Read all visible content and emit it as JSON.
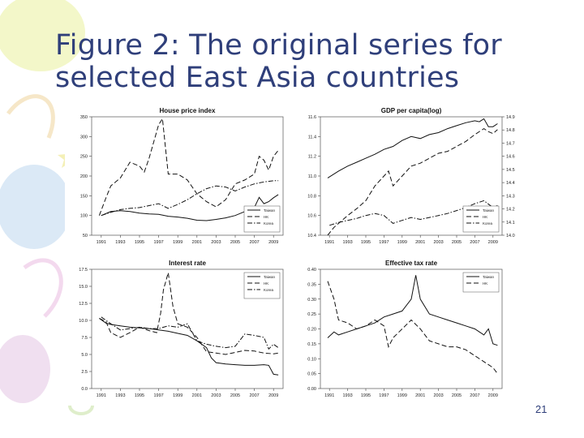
{
  "slide": {
    "title_line1": "Figure 2: The original series for",
    "title_line2": "selected East Asia countries",
    "page_number": "21"
  },
  "chart_data": [
    {
      "type": "line",
      "title": "House price index",
      "x_ticks": [
        "1991",
        "1993",
        "1995",
        "1997",
        "1999",
        "2001",
        "2003",
        "2005",
        "2007",
        "2009"
      ],
      "xlim": [
        1990,
        2010
      ],
      "ylim": [
        50,
        350
      ],
      "y_ticks": [
        "50",
        "100",
        "150",
        "200",
        "250",
        "300",
        "350"
      ],
      "legend": [
        "Taiwan",
        "HK",
        "Korea"
      ],
      "legend_position": "bottom-right",
      "series": [
        {
          "name": "Taiwan",
          "dash": "solid",
          "x": [
            1991,
            1992,
            1993,
            1994,
            1995,
            1996,
            1997,
            1998,
            1999,
            2000,
            2001,
            2002,
            2003,
            2004,
            2005,
            2006,
            2007,
            2007.5,
            2008,
            2008.5,
            2009,
            2009.5
          ],
          "y": [
            100,
            110,
            112,
            110,
            106,
            104,
            103,
            98,
            96,
            93,
            88,
            87,
            90,
            94,
            100,
            110,
            120,
            146,
            130,
            135,
            145,
            153
          ]
        },
        {
          "name": "HK",
          "dash": "dash",
          "x": [
            1990.8,
            1991.5,
            1992,
            1993,
            1994,
            1995,
            1995.5,
            1996,
            1997,
            1997.4,
            1998,
            1999,
            2000,
            2001,
            2002,
            2003,
            2004,
            2005,
            2006,
            2007,
            2007.5,
            2008,
            2008.5,
            2009,
            2009.5
          ],
          "y": [
            100,
            145,
            175,
            195,
            235,
            225,
            210,
            245,
            330,
            345,
            205,
            205,
            190,
            155,
            135,
            122,
            140,
            180,
            190,
            205,
            250,
            240,
            215,
            250,
            265
          ]
        },
        {
          "name": "Korea",
          "dash": "dashdot",
          "x": [
            1991,
            1992,
            1993,
            1994,
            1995,
            1996,
            1997,
            1998,
            1999,
            2000,
            2001,
            2002,
            2003,
            2004,
            2005,
            2006,
            2007,
            2008,
            2009,
            2009.5
          ],
          "y": [
            100,
            108,
            115,
            118,
            120,
            125,
            130,
            118,
            128,
            140,
            155,
            168,
            175,
            172,
            162,
            172,
            180,
            185,
            188,
            188
          ]
        }
      ]
    },
    {
      "type": "line",
      "title": "GDP per capita(log)",
      "x_ticks": [
        "1991",
        "1993",
        "1995",
        "1997",
        "1999",
        "2001",
        "2003",
        "2005",
        "2007",
        "2009"
      ],
      "xlim": [
        1990,
        2010
      ],
      "ylim": [
        10.4,
        11.6
      ],
      "y_ticks": [
        "10.4",
        "10.6",
        "10.8",
        "11.0",
        "11.2",
        "11.4",
        "11.6"
      ],
      "y2lim": [
        14.0,
        14.9
      ],
      "y2_ticks": [
        "14.0",
        "14.1",
        "14.2",
        "14.3",
        "14.4",
        "14.5",
        "14.6",
        "14.7",
        "14.8",
        "14.9"
      ],
      "legend": [
        "Taiwan",
        "HK",
        "Korea"
      ],
      "legend_position": "bottom-right",
      "series": [
        {
          "name": "Taiwan",
          "dash": "solid",
          "x": [
            1990.8,
            1992,
            1993,
            1994,
            1995,
            1996,
            1997,
            1998,
            1999,
            2000,
            2001,
            2002,
            2003,
            2004,
            2005,
            2006,
            2007,
            2007.5,
            2008,
            2008.5,
            2009,
            2009.5
          ],
          "y": [
            10.98,
            11.05,
            11.1,
            11.14,
            11.18,
            11.22,
            11.27,
            11.3,
            11.36,
            11.4,
            11.38,
            11.42,
            11.44,
            11.48,
            11.51,
            11.54,
            11.56,
            11.55,
            11.58,
            11.5,
            11.5,
            11.53
          ]
        },
        {
          "name": "HK",
          "dash": "dash",
          "x": [
            1990.8,
            1991.5,
            1992,
            1993,
            1994,
            1995,
            1996,
            1997,
            1997.5,
            1998,
            1999,
            2000,
            2001,
            2002,
            2003,
            2004,
            2005,
            2006,
            2007,
            2008,
            2008.5,
            2009,
            2009.5
          ],
          "y": [
            10.4,
            10.48,
            10.52,
            10.6,
            10.67,
            10.75,
            10.9,
            11.0,
            11.05,
            10.9,
            11.0,
            11.1,
            11.13,
            11.18,
            11.23,
            11.25,
            11.3,
            11.35,
            11.42,
            11.48,
            11.45,
            11.43,
            11.47
          ]
        },
        {
          "name": "Korea",
          "dash": "dashdot",
          "x": [
            1991,
            1992,
            1993,
            1994,
            1995,
            1996,
            1997,
            1998,
            1999,
            2000,
            2001,
            2002,
            2003,
            2004,
            2005,
            2006,
            2007,
            2008,
            2009,
            2009.5
          ],
          "y": [
            10.5,
            10.53,
            10.55,
            10.57,
            10.6,
            10.62,
            10.6,
            10.52,
            10.55,
            10.58,
            10.56,
            10.58,
            10.6,
            10.62,
            10.65,
            10.68,
            10.72,
            10.75,
            10.68,
            10.7
          ]
        }
      ]
    },
    {
      "type": "line",
      "title": "Interest rate",
      "x_ticks": [
        "1991",
        "1993",
        "1995",
        "1997",
        "1999",
        "2001",
        "2003",
        "2005",
        "2007",
        "2009"
      ],
      "xlim": [
        1990,
        2010
      ],
      "ylim": [
        0,
        17.5
      ],
      "y_ticks": [
        "0.0",
        "2.5",
        "5.0",
        "7.5",
        "10.0",
        "12.5",
        "15.0",
        "17.5"
      ],
      "legend": [
        "Taiwan",
        "HK",
        "Korea"
      ],
      "legend_position": "top-right",
      "series": [
        {
          "name": "Taiwan",
          "dash": "solid",
          "x": [
            1990.8,
            1991.5,
            1992,
            1993,
            1994,
            1995,
            1996,
            1997,
            1998,
            1999,
            2000,
            2001,
            2002,
            2002.5,
            2003,
            2004,
            2005,
            2006,
            2007,
            2008,
            2008.5,
            2009,
            2009.5
          ],
          "y": [
            10.3,
            9.6,
            9.4,
            9.2,
            9.0,
            8.9,
            8.8,
            8.6,
            8.4,
            8.1,
            7.8,
            7.0,
            6.0,
            4.5,
            3.8,
            3.6,
            3.5,
            3.4,
            3.4,
            3.5,
            3.4,
            2.1,
            2.0
          ]
        },
        {
          "name": "HK",
          "dash": "dash",
          "x": [
            1990.8,
            1991.5,
            1992,
            1993,
            1994,
            1995,
            1996,
            1996.8,
            1997.2,
            1997.5,
            1998,
            1998.5,
            1999,
            2000,
            2001,
            2002,
            2003,
            2004,
            2005,
            2006,
            2007,
            2008,
            2009,
            2009.5
          ],
          "y": [
            10.3,
            9.8,
            8.2,
            7.5,
            8.2,
            9.0,
            8.5,
            8.2,
            11.0,
            14.5,
            17.0,
            12.0,
            9.5,
            9.0,
            7.5,
            5.4,
            5.2,
            5.0,
            5.3,
            5.6,
            5.5,
            5.2,
            5.1,
            5.2
          ]
        },
        {
          "name": "Korea",
          "dash": "dashdot",
          "x": [
            1991,
            1992,
            1993,
            1994,
            1995,
            1996,
            1997,
            1998,
            1999,
            2000,
            2001,
            2002,
            2003,
            2004,
            2005,
            2006,
            2007,
            2008,
            2008.5,
            2009,
            2009.5
          ],
          "y": [
            10.5,
            9.5,
            8.6,
            8.8,
            9.0,
            8.8,
            8.8,
            9.2,
            9.0,
            9.5,
            7.0,
            6.5,
            6.2,
            6.0,
            6.2,
            8.0,
            7.8,
            7.5,
            5.8,
            6.5,
            6.0
          ]
        }
      ]
    },
    {
      "type": "line",
      "title": "Effective tax rate",
      "x_ticks": [
        "1991",
        "1993",
        "1995",
        "1997",
        "1999",
        "2001",
        "2003",
        "2005",
        "2007",
        "2009"
      ],
      "xlim": [
        1990,
        2010
      ],
      "ylim": [
        0.0,
        0.4
      ],
      "y_ticks": [
        "0.00",
        "0.05",
        "0.10",
        "0.15",
        "0.20",
        "0.25",
        "0.30",
        "0.35",
        "0.40"
      ],
      "legend": [
        "Taiwan",
        "HK"
      ],
      "legend_position": "top-right",
      "series": [
        {
          "name": "Taiwan",
          "dash": "solid",
          "x": [
            1990.8,
            1991.5,
            1992,
            1993,
            1994,
            1995,
            1996,
            1997,
            1998,
            1999,
            2000,
            2000.5,
            2001,
            2002,
            2003,
            2004,
            2005,
            2006,
            2007,
            2007.5,
            2008,
            2008.5,
            2009,
            2009.5
          ],
          "y": [
            0.17,
            0.19,
            0.18,
            0.19,
            0.2,
            0.21,
            0.22,
            0.24,
            0.25,
            0.26,
            0.3,
            0.38,
            0.3,
            0.25,
            0.24,
            0.23,
            0.22,
            0.21,
            0.2,
            0.19,
            0.18,
            0.2,
            0.15,
            0.145
          ]
        },
        {
          "name": "HK",
          "dash": "dash",
          "x": [
            1990.8,
            1991.5,
            1992,
            1993,
            1994,
            1995,
            1996,
            1997,
            1997.5,
            1998,
            1999,
            2000,
            2001,
            2002,
            2003,
            2004,
            2005,
            2006,
            2007,
            2008,
            2008.5,
            2009,
            2009.5
          ],
          "y": [
            0.36,
            0.3,
            0.23,
            0.22,
            0.2,
            0.21,
            0.23,
            0.21,
            0.14,
            0.17,
            0.2,
            0.23,
            0.2,
            0.16,
            0.15,
            0.14,
            0.14,
            0.13,
            0.11,
            0.09,
            0.08,
            0.07,
            0.05
          ]
        }
      ]
    }
  ]
}
